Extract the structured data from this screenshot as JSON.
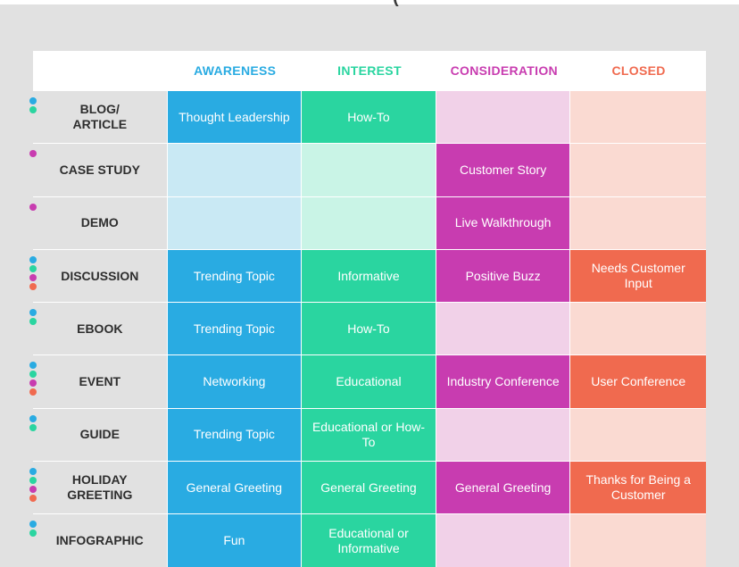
{
  "page": {
    "top_fragment": "(",
    "colors": {
      "background": "#e1e1e1",
      "awareness": "#29abe2",
      "awareness_light": "#c9e9f4",
      "interest": "#2ad5a0",
      "interest_light": "#c9f4e6",
      "consideration": "#c83cb0",
      "consideration_light": "#f1d1e8",
      "closed": "#f06a4f",
      "closed_light": "#fadad2"
    }
  },
  "columns": [
    {
      "label": "AWARENESS",
      "color": "#29abe2"
    },
    {
      "label": "INTEREST",
      "color": "#2ad5a0"
    },
    {
      "label": "CONSIDERATION",
      "color": "#c83cb0"
    },
    {
      "label": "CLOSED",
      "color": "#f06a4f"
    }
  ],
  "rows": [
    {
      "label": "BLOG/\nARTICLE",
      "cells": [
        "Thought Leadership",
        "How-To",
        "",
        ""
      ],
      "dots": [
        "awareness",
        "interest"
      ]
    },
    {
      "label": "CASE STUDY",
      "cells": [
        "",
        "",
        "Customer Story",
        ""
      ],
      "dots": [
        "consideration"
      ]
    },
    {
      "label": "DEMO",
      "cells": [
        "",
        "",
        "Live Walkthrough",
        ""
      ],
      "dots": [
        "consideration"
      ]
    },
    {
      "label": "DISCUSSION",
      "cells": [
        "Trending Topic",
        "Informative",
        "Positive Buzz",
        "Needs Customer Input"
      ],
      "dots": [
        "awareness",
        "interest",
        "consideration",
        "closed"
      ]
    },
    {
      "label": "EBOOK",
      "cells": [
        "Trending Topic",
        "How-To",
        "",
        ""
      ],
      "dots": [
        "awareness",
        "interest"
      ]
    },
    {
      "label": "EVENT",
      "cells": [
        "Networking",
        "Educational",
        "Industry Conference",
        "User Conference"
      ],
      "dots": [
        "awareness",
        "interest",
        "consideration",
        "closed"
      ]
    },
    {
      "label": "GUIDE",
      "cells": [
        "Trending Topic",
        "Educational or How-To",
        "",
        ""
      ],
      "dots": [
        "awareness",
        "interest"
      ]
    },
    {
      "label": "HOLIDAY\nGREETING",
      "cells": [
        "General Greeting",
        "General Greeting",
        "General Greeting",
        "Thanks for Being a Customer"
      ],
      "dots": [
        "awareness",
        "interest",
        "consideration",
        "closed"
      ]
    },
    {
      "label": "INFOGRAPHIC",
      "cells": [
        "Fun",
        "Educational or Informative",
        "",
        ""
      ],
      "dots": [
        "awareness",
        "interest"
      ]
    }
  ]
}
